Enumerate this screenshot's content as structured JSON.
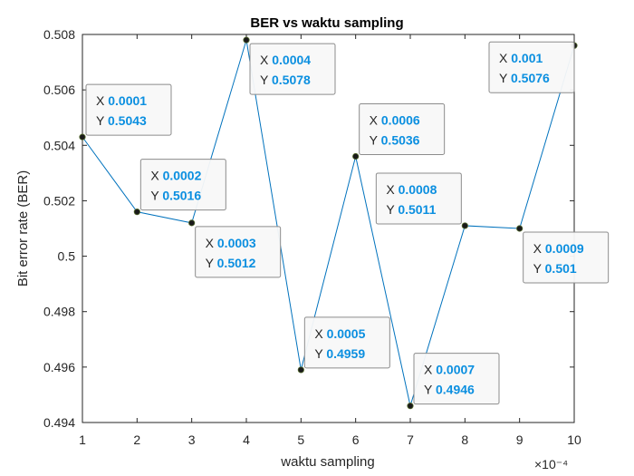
{
  "chart_data": {
    "type": "line",
    "title": "BER vs waktu sampling",
    "xlabel": "waktu sampling",
    "ylabel": "Bit error rate (BER)",
    "x_exponent_label": "×10⁻⁴",
    "xlim": [
      0.0001,
      0.001
    ],
    "ylim": [
      0.494,
      0.508
    ],
    "x_ticks": [
      {
        "value": 0.0001,
        "label": "1"
      },
      {
        "value": 0.0002,
        "label": "2"
      },
      {
        "value": 0.0003,
        "label": "3"
      },
      {
        "value": 0.0004,
        "label": "4"
      },
      {
        "value": 0.0005,
        "label": "5"
      },
      {
        "value": 0.0006,
        "label": "6"
      },
      {
        "value": 0.0007,
        "label": "7"
      },
      {
        "value": 0.0008,
        "label": "8"
      },
      {
        "value": 0.0009,
        "label": "9"
      },
      {
        "value": 0.001,
        "label": "10"
      }
    ],
    "y_ticks": [
      {
        "value": 0.494,
        "label": "0.494"
      },
      {
        "value": 0.496,
        "label": "0.496"
      },
      {
        "value": 0.498,
        "label": "0.498"
      },
      {
        "value": 0.5,
        "label": "0.5"
      },
      {
        "value": 0.502,
        "label": "0.502"
      },
      {
        "value": 0.504,
        "label": "0.504"
      },
      {
        "value": 0.506,
        "label": "0.506"
      },
      {
        "value": 0.508,
        "label": "0.508"
      }
    ],
    "grid": false,
    "line_color": "#0072bd",
    "marker_color": "#1a1a1a",
    "datatip_value_color": "#0b8fe0",
    "series": [
      {
        "x": [
          0.0001,
          0.0002,
          0.0003,
          0.0004,
          0.0005,
          0.0006,
          0.0007,
          0.0008,
          0.0009,
          0.001
        ],
        "y": [
          0.5043,
          0.5016,
          0.5012,
          0.5078,
          0.4959,
          0.5036,
          0.4946,
          0.5011,
          0.501,
          0.5076
        ]
      }
    ],
    "datatips": [
      {
        "x_text": "0.0001",
        "y_text": "0.5043",
        "placement": "upper-right"
      },
      {
        "x_text": "0.0002",
        "y_text": "0.5016",
        "placement": "upper-right"
      },
      {
        "x_text": "0.0003",
        "y_text": "0.5012",
        "placement": "lower-right"
      },
      {
        "x_text": "0.0004",
        "y_text": "0.5078",
        "placement": "lower-right"
      },
      {
        "x_text": "0.0005",
        "y_text": "0.4959",
        "placement": "upper-right"
      },
      {
        "x_text": "0.0006",
        "y_text": "0.5036",
        "placement": "upper-right"
      },
      {
        "x_text": "0.0007",
        "y_text": "0.4946",
        "placement": "upper-right"
      },
      {
        "x_text": "0.0008",
        "y_text": "0.5011",
        "placement": "upper-left"
      },
      {
        "x_text": "0.0009",
        "y_text": "0.501",
        "placement": "lower-right"
      },
      {
        "x_text": "0.001",
        "y_text": "0.5076",
        "placement": "lower-left"
      }
    ]
  }
}
